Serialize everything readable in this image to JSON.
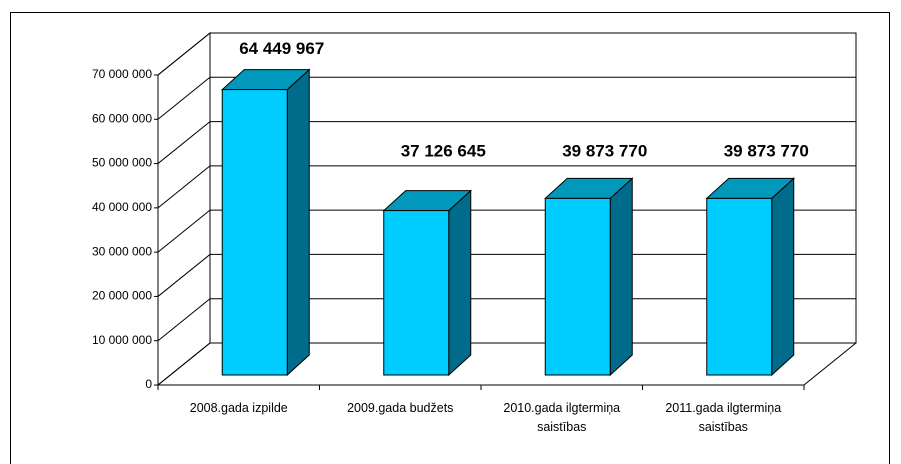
{
  "chart_data": {
    "type": "bar",
    "categories": [
      "2008.gada izpilde",
      "2009.gada budžets",
      "2010.gada ilgtermiņa saistības",
      "2011.gada ilgtermiņa saistības"
    ],
    "values": [
      64449967,
      37126645,
      39873770,
      39873770
    ],
    "value_labels": [
      "64 449 967",
      "37 126 645",
      "39 873 770",
      "39 873 770"
    ],
    "color": "#00ccff",
    "ylim": [
      0,
      70000000
    ],
    "yticks": [
      0,
      {
        "value": 10000000,
        "label": "10 000 000"
      },
      {
        "value": 20000000,
        "label": "20 000 000"
      },
      {
        "value": 30000000,
        "label": "30 000 000"
      },
      {
        "value": 40000000,
        "label": "40 000 000"
      },
      {
        "value": 50000000,
        "label": "50 000 000"
      },
      {
        "value": 60000000,
        "label": "60 000 000"
      },
      {
        "value": 70000000,
        "label": "70 000 000"
      }
    ],
    "grid": true
  }
}
